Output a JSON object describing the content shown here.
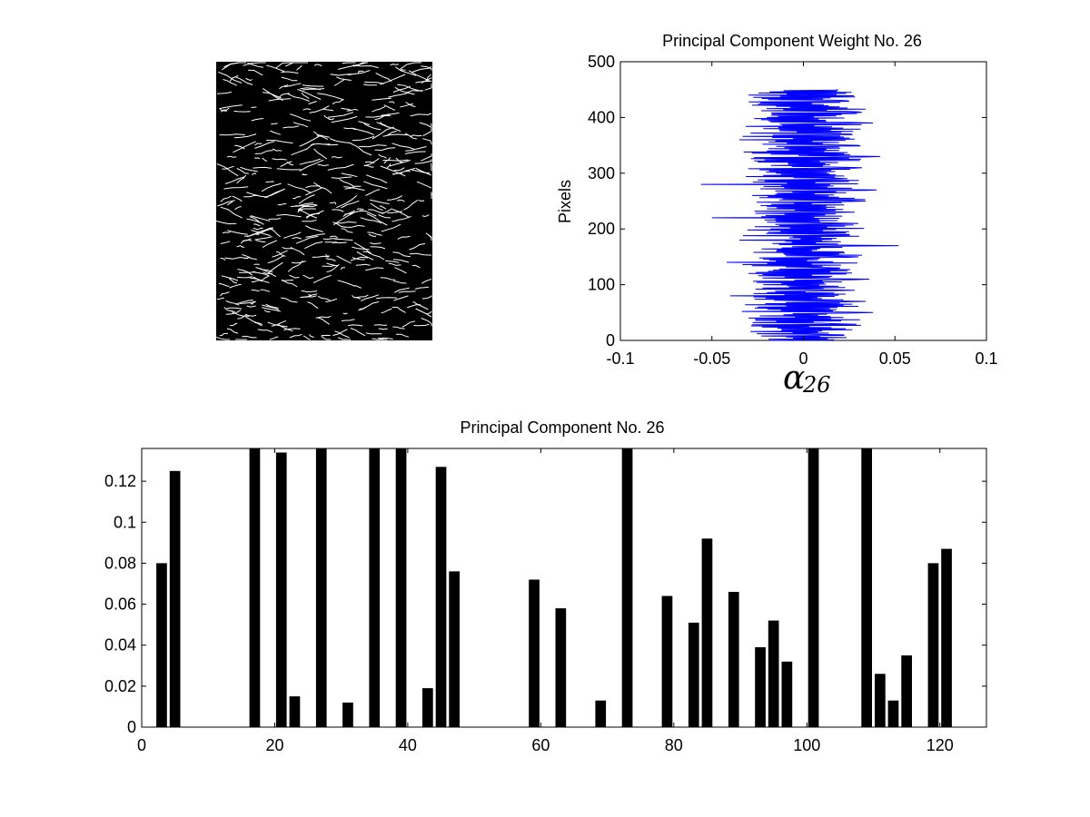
{
  "chart_data": [
    {
      "type": "image",
      "description": "",
      "image_size": [
        240,
        500
      ]
    },
    {
      "type": "line",
      "orientation": "horizontal-trace",
      "title": "Principal Component Weight No. 26",
      "xlabel": "α26",
      "xlabel_main": "α",
      "xlabel_sub": "26",
      "ylabel": "Pixels",
      "xlim": [
        -0.1,
        0.1
      ],
      "ylim": [
        0,
        500
      ],
      "xticks": [
        -0.1,
        -0.05,
        0,
        0.05,
        0.1
      ],
      "xtick_labels": [
        "-0.1",
        "-0.05",
        "0",
        "0.05",
        "0.1"
      ],
      "yticks": [
        0,
        100,
        200,
        300,
        400,
        500
      ],
      "ytick_labels": [
        "0",
        "100",
        "200",
        "300",
        "400",
        "500"
      ],
      "line_color": "#0000ff",
      "y_range": [
        0,
        450
      ],
      "series": [
        {
          "anchors_y": [
            0,
            10,
            20,
            30,
            40,
            50,
            60,
            70,
            80,
            90,
            100,
            110,
            120,
            130,
            140,
            150,
            160,
            170,
            180,
            190,
            200,
            210,
            220,
            230,
            240,
            250,
            260,
            270,
            280,
            290,
            300,
            310,
            320,
            330,
            340,
            350,
            360,
            370,
            380,
            390,
            400,
            410,
            420,
            430,
            440,
            450
          ],
          "anchors_x": [
            -0.018,
            0.022,
            -0.012,
            0.018,
            -0.03,
            0.038,
            -0.025,
            0.034,
            -0.04,
            0.028,
            -0.022,
            0.036,
            -0.03,
            0.02,
            -0.042,
            0.03,
            -0.015,
            0.052,
            -0.035,
            0.025,
            -0.018,
            0.03,
            -0.05,
            0.028,
            -0.02,
            0.034,
            -0.028,
            0.04,
            -0.056,
            0.024,
            -0.015,
            0.032,
            -0.025,
            0.042,
            -0.02,
            0.03,
            -0.035,
            0.026,
            -0.022,
            0.038,
            -0.02,
            0.03,
            -0.015,
            0.024,
            -0.03,
            0.018
          ]
        }
      ]
    },
    {
      "type": "bar",
      "title": "Principal Component No. 26",
      "xlabel": "",
      "ylabel": "",
      "xlim": [
        0,
        127
      ],
      "ylim": [
        0,
        0.136
      ],
      "xticks": [
        0,
        20,
        40,
        60,
        80,
        100,
        120
      ],
      "xtick_labels": [
        "0",
        "20",
        "40",
        "60",
        "80",
        "100",
        "120"
      ],
      "yticks": [
        0,
        0.02,
        0.04,
        0.06,
        0.08,
        0.1,
        0.12
      ],
      "ytick_labels": [
        "0",
        "0.02",
        "0.04",
        "0.06",
        "0.08",
        "0.1",
        "0.12"
      ],
      "bar_color": "#000000",
      "bar_width": 1.6,
      "x": [
        3,
        5,
        17,
        21,
        23,
        27,
        31,
        35,
        39,
        43,
        45,
        47,
        59,
        63,
        69,
        73,
        79,
        83,
        85,
        89,
        93,
        95,
        97,
        101,
        109,
        111,
        113,
        115,
        119,
        121
      ],
      "values": [
        0.08,
        0.125,
        0.136,
        0.134,
        0.015,
        0.136,
        0.012,
        0.136,
        0.136,
        0.019,
        0.127,
        0.076,
        0.072,
        0.058,
        0.013,
        0.136,
        0.064,
        0.051,
        0.092,
        0.066,
        0.039,
        0.052,
        0.032,
        0.136,
        0.136,
        0.026,
        0.013,
        0.035,
        0.08,
        0.087
      ]
    }
  ]
}
